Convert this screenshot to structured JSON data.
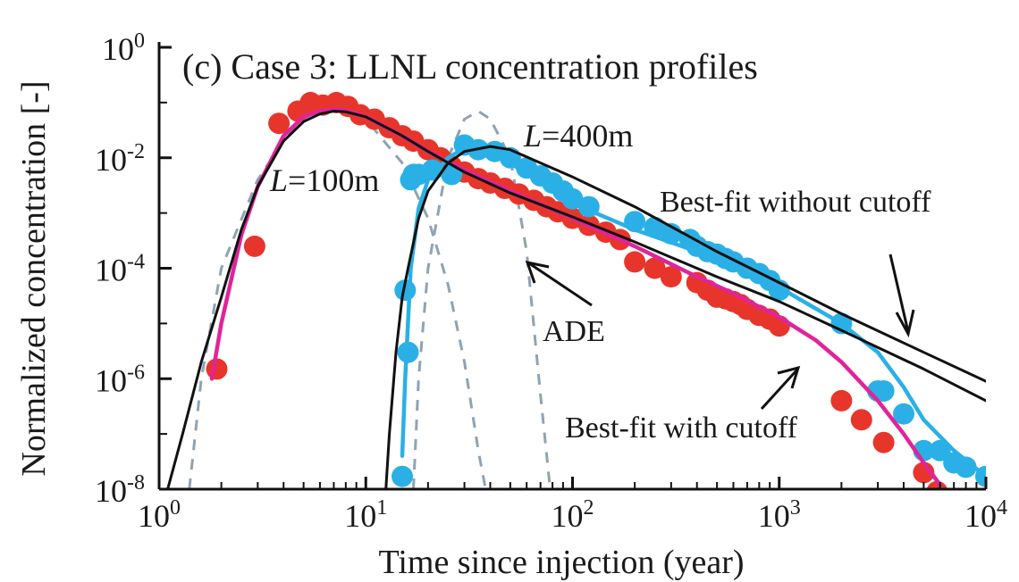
{
  "chart_data": {
    "type": "line",
    "title": "(c) Case 3: LLNL concentration profiles",
    "xlabel": "Time since injection (year)",
    "ylabel": "Normalized concentration [-]",
    "x_scale": "log",
    "y_scale": "log",
    "xlim": [
      1,
      10000
    ],
    "ylim": [
      1e-08,
      1
    ],
    "x_ticks": [
      {
        "base": "10",
        "exp": "0"
      },
      {
        "base": "10",
        "exp": "1"
      },
      {
        "base": "10",
        "exp": "2"
      },
      {
        "base": "10",
        "exp": "3"
      },
      {
        "base": "10",
        "exp": "4"
      }
    ],
    "y_ticks": [
      {
        "base": "10",
        "exp": "0"
      },
      {
        "base": "10",
        "exp": "-2"
      },
      {
        "base": "10",
        "exp": "-4"
      },
      {
        "base": "10",
        "exp": "-6"
      },
      {
        "base": "10",
        "exp": "-8"
      }
    ],
    "grid": false,
    "colors": {
      "data_100m": "#e8352b",
      "data_400m": "#2ab0e6",
      "fit_cutoff_100m": "#e0249a",
      "fit_cutoff_400m": "#2ab0e6",
      "fit_no_cutoff": "#111111",
      "ade": "#8fa3b2"
    },
    "annotations": [
      {
        "id": "l100",
        "italic": "L",
        "text": "=100m"
      },
      {
        "id": "l400",
        "italic": "L",
        "text": "=400m"
      },
      {
        "id": "nocut",
        "text": "Best-fit without cutoff"
      },
      {
        "id": "ade",
        "text": "ADE"
      },
      {
        "id": "cut",
        "text": "Best-fit with cutoff"
      }
    ],
    "series": [
      {
        "kind": "observed-points",
        "color_key": "data_100m",
        "points": [
          [
            1.9,
            1.5e-06
          ],
          [
            2.9,
            0.00025
          ],
          [
            3.8,
            0.042
          ],
          [
            4.7,
            0.07
          ],
          [
            5.4,
            0.1
          ],
          [
            6.2,
            0.09
          ],
          [
            7.2,
            0.1
          ],
          [
            8.2,
            0.085
          ],
          [
            9.4,
            0.06
          ],
          [
            11,
            0.05
          ],
          [
            13,
            0.035
          ],
          [
            15,
            0.025
          ],
          [
            17,
            0.02
          ],
          [
            20,
            0.014
          ],
          [
            23,
            0.01
          ],
          [
            26,
            0.007
          ],
          [
            30,
            0.0055
          ],
          [
            35,
            0.0042
          ],
          [
            40,
            0.0035
          ],
          [
            47,
            0.0028
          ],
          [
            55,
            0.0022
          ],
          [
            65,
            0.0017
          ],
          [
            75,
            0.0013
          ],
          [
            85,
            0.00105
          ],
          [
            100,
            0.0008
          ],
          [
            120,
            0.0006
          ],
          [
            145,
            0.00045
          ],
          [
            170,
            0.00033
          ],
          [
            200,
            0.00013
          ],
          [
            250,
            0.0001
          ],
          [
            300,
            7e-05
          ],
          [
            400,
            5.5e-05
          ],
          [
            450,
            4e-05
          ],
          [
            500,
            3e-05
          ],
          [
            550,
            2.8e-05
          ],
          [
            600,
            2.5e-05
          ],
          [
            650,
            2.2e-05
          ],
          [
            700,
            1.8e-05
          ],
          [
            800,
            1.4e-05
          ],
          [
            900,
            1.2e-05
          ],
          [
            1000,
            9e-06
          ],
          [
            2000,
            4e-07
          ],
          [
            2500,
            1.8e-07
          ],
          [
            3200,
            7e-08
          ],
          [
            5000,
            2e-08
          ],
          [
            5800,
            9e-09
          ]
        ]
      },
      {
        "kind": "observed-points",
        "color_key": "data_400m",
        "points": [
          [
            15,
            1.7e-08
          ],
          [
            15.5,
            4e-05
          ],
          [
            16,
            3e-06
          ],
          [
            16.5,
            0.004
          ],
          [
            17,
            0.005
          ],
          [
            18,
            0.005
          ],
          [
            21,
            0.006
          ],
          [
            26,
            0.005
          ],
          [
            30,
            0.017
          ],
          [
            35,
            0.014
          ],
          [
            42,
            0.013
          ],
          [
            50,
            0.01
          ],
          [
            60,
            0.0065
          ],
          [
            70,
            0.0047
          ],
          [
            80,
            0.0035
          ],
          [
            90,
            0.0025
          ],
          [
            100,
            0.0018
          ],
          [
            120,
            0.0013
          ],
          [
            200,
            0.0007
          ],
          [
            250,
            0.00055
          ],
          [
            300,
            0.00042
          ],
          [
            370,
            0.00033
          ],
          [
            400,
            0.00025
          ],
          [
            450,
            0.0002
          ],
          [
            500,
            0.00018
          ],
          [
            550,
            0.00015
          ],
          [
            600,
            0.00013
          ],
          [
            700,
            0.0001
          ],
          [
            800,
            8e-05
          ],
          [
            900,
            6e-05
          ],
          [
            1000,
            4e-05
          ],
          [
            2000,
            1e-05
          ],
          [
            3000,
            6e-07
          ],
          [
            3200,
            6e-07
          ],
          [
            4000,
            2.3e-07
          ],
          [
            5000,
            5e-08
          ],
          [
            6000,
            5e-08
          ],
          [
            7000,
            3e-08
          ],
          [
            8000,
            2.5e-08
          ],
          [
            10000,
            1.7e-08
          ]
        ]
      },
      {
        "kind": "curve",
        "color_key": "fit_cutoff_100m",
        "points": [
          [
            1.8,
            1e-06
          ],
          [
            2,
            1e-05
          ],
          [
            2.5,
            0.0004
          ],
          [
            3,
            0.003
          ],
          [
            4,
            0.025
          ],
          [
            5,
            0.055
          ],
          [
            6,
            0.07
          ],
          [
            7,
            0.075
          ],
          [
            8,
            0.072
          ],
          [
            10,
            0.055
          ],
          [
            15,
            0.025
          ],
          [
            20,
            0.013
          ],
          [
            30,
            0.006
          ],
          [
            50,
            0.0025
          ],
          [
            100,
            0.0008
          ],
          [
            200,
            0.00025
          ],
          [
            400,
            7e-05
          ],
          [
            600,
            3.5e-05
          ],
          [
            1000,
            1.3e-05
          ],
          [
            1500,
            5e-06
          ],
          [
            2000,
            2e-06
          ],
          [
            3000,
            4e-07
          ],
          [
            4000,
            1e-07
          ],
          [
            5000,
            3e-08
          ],
          [
            6000,
            1.2e-08
          ]
        ]
      },
      {
        "kind": "curve",
        "color_key": "fit_cutoff_400m",
        "points": [
          [
            15,
            4e-08
          ],
          [
            15.5,
            1e-06
          ],
          [
            16.5,
            0.0001
          ],
          [
            18,
            0.0012
          ],
          [
            20,
            0.004
          ],
          [
            25,
            0.01
          ],
          [
            30,
            0.015
          ],
          [
            35,
            0.015
          ],
          [
            50,
            0.008
          ],
          [
            100,
            0.0015
          ],
          [
            200,
            0.0005
          ],
          [
            500,
            0.00015
          ],
          [
            1000,
            4.5e-05
          ],
          [
            2000,
            1e-05
          ],
          [
            3000,
            3e-06
          ],
          [
            4000,
            7e-07
          ],
          [
            5000,
            1.8e-07
          ],
          [
            7000,
            5e-08
          ],
          [
            10000,
            1.7e-08
          ]
        ]
      },
      {
        "kind": "curve",
        "color_key": "fit_no_cutoff",
        "points": [
          [
            1.1,
            1e-08
          ],
          [
            1.3,
            1e-07
          ],
          [
            1.6,
            2e-06
          ],
          [
            2,
            3e-05
          ],
          [
            2.5,
            0.0005
          ],
          [
            3,
            0.003
          ],
          [
            4,
            0.02
          ],
          [
            5,
            0.045
          ],
          [
            6,
            0.062
          ],
          [
            7,
            0.07
          ],
          [
            8,
            0.068
          ],
          [
            10,
            0.055
          ],
          [
            15,
            0.025
          ],
          [
            20,
            0.013
          ],
          [
            30,
            0.0055
          ],
          [
            50,
            0.0023
          ],
          [
            100,
            0.00085
          ],
          [
            200,
            0.0003
          ],
          [
            500,
            7e-05
          ],
          [
            1000,
            2.5e-05
          ],
          [
            2000,
            7.5e-06
          ],
          [
            5000,
            1.5e-06
          ],
          [
            10000,
            4e-07
          ]
        ]
      },
      {
        "kind": "curve",
        "color_key": "fit_no_cutoff",
        "points": [
          [
            12.5,
            1e-08
          ],
          [
            13,
            1e-07
          ],
          [
            14,
            3e-06
          ],
          [
            15,
            3e-05
          ],
          [
            16,
            0.0001
          ],
          [
            18,
            0.0008
          ],
          [
            20,
            0.0025
          ],
          [
            25,
            0.008
          ],
          [
            30,
            0.013
          ],
          [
            40,
            0.016
          ],
          [
            50,
            0.014
          ],
          [
            100,
            0.0045
          ],
          [
            200,
            0.0013
          ],
          [
            500,
            0.0002
          ],
          [
            1000,
            5.5e-05
          ],
          [
            2000,
            1.5e-05
          ],
          [
            5000,
            3e-06
          ],
          [
            10000,
            9e-07
          ]
        ]
      },
      {
        "kind": "dashed",
        "color_key": "ade",
        "points": [
          [
            1.4,
            1e-08
          ],
          [
            1.6,
            1e-06
          ],
          [
            2,
            0.0001
          ],
          [
            3,
            0.004
          ],
          [
            4,
            0.02
          ],
          [
            5,
            0.05
          ],
          [
            6,
            0.075
          ],
          [
            7,
            0.085
          ],
          [
            8,
            0.08
          ],
          [
            10,
            0.05
          ],
          [
            15,
            0.008
          ],
          [
            20,
            0.0008
          ],
          [
            25,
            5e-05
          ],
          [
            30,
            2e-06
          ],
          [
            35,
            5e-08
          ],
          [
            38,
            1e-08
          ]
        ]
      },
      {
        "kind": "dashed",
        "color_key": "ade",
        "points": [
          [
            17,
            1e-08
          ],
          [
            18,
            1e-06
          ],
          [
            20,
            0.0001
          ],
          [
            25,
            0.01
          ],
          [
            30,
            0.05
          ],
          [
            35,
            0.07
          ],
          [
            40,
            0.05
          ],
          [
            50,
            0.01
          ],
          [
            60,
            0.0002
          ],
          [
            70,
            5e-07
          ],
          [
            78,
            1e-08
          ]
        ]
      }
    ]
  }
}
